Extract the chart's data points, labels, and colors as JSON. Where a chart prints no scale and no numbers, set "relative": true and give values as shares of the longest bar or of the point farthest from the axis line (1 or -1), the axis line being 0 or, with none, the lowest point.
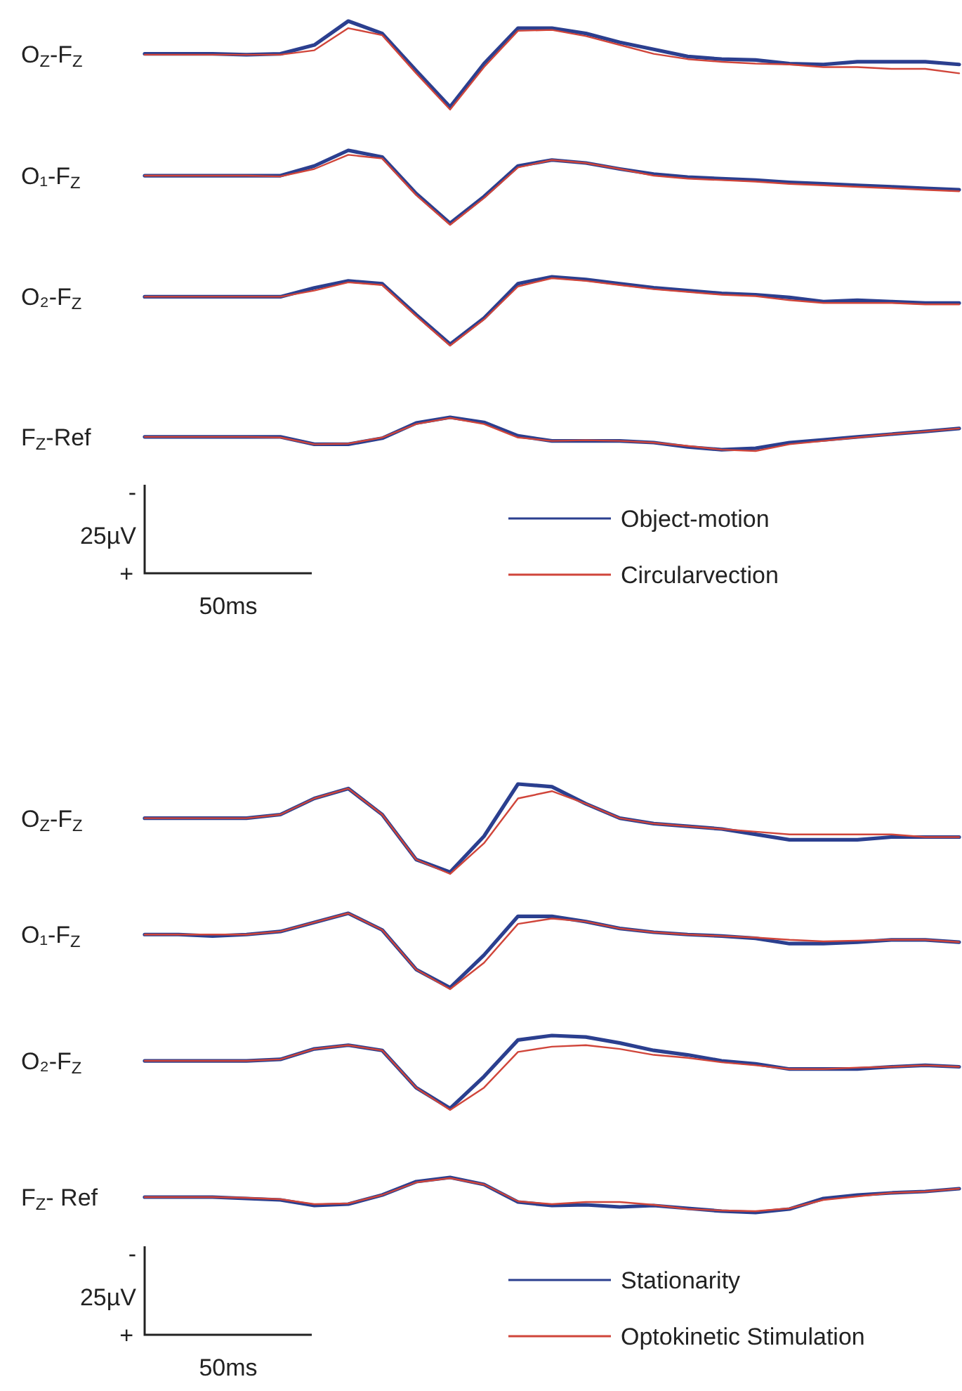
{
  "chart_data": [
    {
      "type": "line",
      "title": "O$_{Z}$-F$_{Z}$",
      "relative": true,
      "categories": [
        null,
        null,
        null,
        null,
        null,
        null,
        null,
        null,
        null,
        null,
        null,
        null,
        null,
        null,
        null,
        null,
        null,
        null,
        null,
        null,
        null,
        null,
        null,
        null,
        null
      ],
      "series": [
        {
          "color": "#2b3f8f",
          "values": [
            0.63,
            0.63,
            0.63,
            0.62,
            0.63,
            0.73,
            1,
            0.86,
            0.44,
            0.03,
            0.52,
            0.92,
            0.92,
            0.86,
            0.76,
            0.68,
            0.6,
            0.57,
            0.56,
            0.52,
            0.51,
            0.54,
            0.54,
            0.54,
            0.51
          ]
        },
        {
          "color": "#d0453a",
          "values": [
            0.62,
            0.62,
            0.62,
            0.62,
            0.62,
            0.67,
            0.92,
            0.84,
            0.41,
            0,
            0.48,
            0.89,
            0.9,
            0.83,
            0.73,
            0.63,
            0.57,
            0.54,
            0.52,
            0.51,
            0.48,
            0.48,
            0.46,
            0.46,
            0.41
          ]
        }
      ]
    },
    {
      "type": "line",
      "title": "O₁-F$_{Z}$",
      "relative": true,
      "categories": [
        null,
        null,
        null,
        null,
        null,
        null,
        null,
        null,
        null,
        null,
        null,
        null,
        null,
        null,
        null,
        null,
        null,
        null,
        null,
        null,
        null,
        null,
        null,
        null,
        null
      ],
      "series": [
        {
          "color": "#2b3f8f",
          "values": [
            0.66,
            0.66,
            0.66,
            0.66,
            0.66,
            0.79,
            1,
            0.91,
            0.42,
            0.02,
            0.38,
            0.79,
            0.87,
            0.83,
            0.75,
            0.68,
            0.64,
            0.62,
            0.6,
            0.57,
            0.55,
            0.53,
            0.51,
            0.49,
            0.47
          ]
        },
        {
          "color": "#d0453a",
          "values": [
            0.66,
            0.66,
            0.66,
            0.66,
            0.65,
            0.75,
            0.94,
            0.89,
            0.4,
            0,
            0.36,
            0.77,
            0.87,
            0.83,
            0.75,
            0.66,
            0.62,
            0.6,
            0.58,
            0.55,
            0.53,
            0.51,
            0.49,
            0.47,
            0.45
          ]
        }
      ]
    },
    {
      "type": "line",
      "title": "O₂-F$_{Z}$",
      "relative": true,
      "categories": [
        null,
        null,
        null,
        null,
        null,
        null,
        null,
        null,
        null,
        null,
        null,
        null,
        null,
        null,
        null,
        null,
        null,
        null,
        null,
        null,
        null,
        null,
        null,
        null,
        null
      ],
      "series": [
        {
          "color": "#2b3f8f",
          "values": [
            0.71,
            0.71,
            0.71,
            0.71,
            0.71,
            0.84,
            0.94,
            0.9,
            0.45,
            0.02,
            0.4,
            0.9,
            1,
            0.96,
            0.9,
            0.84,
            0.8,
            0.76,
            0.74,
            0.7,
            0.64,
            0.66,
            0.64,
            0.62,
            0.62
          ]
        },
        {
          "color": "#d0453a",
          "values": [
            0.71,
            0.71,
            0.71,
            0.71,
            0.71,
            0.8,
            0.92,
            0.88,
            0.43,
            0,
            0.38,
            0.86,
            0.98,
            0.94,
            0.88,
            0.82,
            0.78,
            0.74,
            0.72,
            0.66,
            0.62,
            0.62,
            0.62,
            0.6,
            0.6
          ]
        }
      ]
    },
    {
      "type": "line",
      "title": "F$_{Z}$-Ref",
      "relative": true,
      "legend": "bottom right",
      "annotations": [
        "-",
        "25µV",
        "+",
        "50ms"
      ],
      "categories": [
        null,
        null,
        null,
        null,
        null,
        null,
        null,
        null,
        null,
        null,
        null,
        null,
        null,
        null,
        null,
        null,
        null,
        null,
        null,
        null,
        null,
        null,
        null,
        null,
        null
      ],
      "series": [
        {
          "name": "Object-motion",
          "color": "#2b3f8f",
          "values": [
            0.42,
            0.42,
            0.42,
            0.42,
            0.42,
            0.2,
            0.2,
            0.38,
            0.83,
            1,
            0.85,
            0.45,
            0.3,
            0.3,
            0.3,
            0.25,
            0.12,
            0.04,
            0.08,
            0.25,
            0.33,
            0.42,
            0.5,
            0.58,
            0.67
          ]
        },
        {
          "name": "Circularvection",
          "color": "#d0453a",
          "values": [
            0.42,
            0.42,
            0.42,
            0.42,
            0.4,
            0.2,
            0.22,
            0.4,
            0.8,
            0.98,
            0.8,
            0.4,
            0.3,
            0.32,
            0.3,
            0.25,
            0.15,
            0.04,
            0,
            0.2,
            0.3,
            0.4,
            0.5,
            0.58,
            0.67
          ]
        }
      ]
    },
    {
      "type": "line",
      "title": "O$_{Z}$-F$_{Z}$",
      "relative": true,
      "categories": [
        null,
        null,
        null,
        null,
        null,
        null,
        null,
        null,
        null,
        null,
        null,
        null,
        null,
        null,
        null,
        null,
        null,
        null,
        null,
        null,
        null,
        null,
        null,
        null,
        null
      ],
      "series": [
        {
          "color": "#2b3f8f",
          "values": [
            0.62,
            0.62,
            0.62,
            0.62,
            0.66,
            0.84,
            0.95,
            0.66,
            0.16,
            0.02,
            0.42,
            1,
            0.97,
            0.78,
            0.62,
            0.56,
            0.53,
            0.5,
            0.44,
            0.38,
            0.38,
            0.38,
            0.41,
            0.41,
            0.41
          ]
        },
        {
          "color": "#d0453a",
          "values": [
            0.62,
            0.62,
            0.62,
            0.62,
            0.66,
            0.84,
            0.95,
            0.66,
            0.16,
            0,
            0.34,
            0.84,
            0.92,
            0.78,
            0.62,
            0.56,
            0.53,
            0.5,
            0.47,
            0.44,
            0.44,
            0.44,
            0.44,
            0.41,
            0.41
          ]
        }
      ]
    },
    {
      "type": "line",
      "title": "O₁-F$_{Z}$",
      "relative": true,
      "categories": [
        null,
        null,
        null,
        null,
        null,
        null,
        null,
        null,
        null,
        null,
        null,
        null,
        null,
        null,
        null,
        null,
        null,
        null,
        null,
        null,
        null,
        null,
        null,
        null,
        null
      ],
      "series": [
        {
          "color": "#2b3f8f",
          "values": [
            0.72,
            0.72,
            0.7,
            0.72,
            0.76,
            0.88,
            1,
            0.78,
            0.26,
            0.02,
            0.45,
            0.96,
            0.96,
            0.89,
            0.8,
            0.75,
            0.72,
            0.7,
            0.67,
            0.6,
            0.6,
            0.62,
            0.65,
            0.65,
            0.62
          ]
        },
        {
          "color": "#d0453a",
          "values": [
            0.72,
            0.72,
            0.72,
            0.72,
            0.76,
            0.88,
            1,
            0.78,
            0.26,
            0,
            0.35,
            0.86,
            0.93,
            0.89,
            0.8,
            0.75,
            0.72,
            0.7,
            0.68,
            0.65,
            0.63,
            0.64,
            0.65,
            0.65,
            0.62
          ]
        }
      ]
    },
    {
      "type": "line",
      "title": "O₂-F$_{Z}$",
      "relative": true,
      "categories": [
        null,
        null,
        null,
        null,
        null,
        null,
        null,
        null,
        null,
        null,
        null,
        null,
        null,
        null,
        null,
        null,
        null,
        null,
        null,
        null,
        null,
        null,
        null,
        null,
        null
      ],
      "series": [
        {
          "color": "#2b3f8f",
          "values": [
            0.66,
            0.66,
            0.66,
            0.66,
            0.68,
            0.82,
            0.87,
            0.8,
            0.3,
            0.02,
            0.45,
            0.94,
            1,
            0.98,
            0.9,
            0.8,
            0.74,
            0.66,
            0.62,
            0.55,
            0.55,
            0.55,
            0.58,
            0.6,
            0.58
          ]
        },
        {
          "color": "#d0453a",
          "values": [
            0.66,
            0.66,
            0.66,
            0.66,
            0.68,
            0.82,
            0.87,
            0.8,
            0.3,
            0,
            0.3,
            0.78,
            0.85,
            0.87,
            0.82,
            0.74,
            0.7,
            0.64,
            0.6,
            0.55,
            0.55,
            0.57,
            0.58,
            0.6,
            0.58
          ]
        }
      ]
    },
    {
      "type": "line",
      "title": "F$_{Z}$- Ref",
      "relative": true,
      "legend": "bottom right",
      "annotations": [
        "-",
        "25µV",
        "+",
        "50ms"
      ],
      "categories": [
        null,
        null,
        null,
        null,
        null,
        null,
        null,
        null,
        null,
        null,
        null,
        null,
        null,
        null,
        null,
        null,
        null,
        null,
        null,
        null,
        null,
        null,
        null,
        null,
        null
      ],
      "series": [
        {
          "name": "Stationarity",
          "color": "#2b3f8f",
          "values": [
            0.44,
            0.44,
            0.44,
            0.4,
            0.36,
            0.2,
            0.24,
            0.5,
            0.88,
            1,
            0.8,
            0.3,
            0.2,
            0.22,
            0.16,
            0.2,
            0.12,
            0.04,
            0,
            0.1,
            0.4,
            0.5,
            0.56,
            0.6,
            0.68
          ]
        },
        {
          "name": "Optokinetic Stimulation",
          "color": "#d0453a",
          "values": [
            0.44,
            0.44,
            0.44,
            0.42,
            0.38,
            0.24,
            0.26,
            0.5,
            0.86,
            0.98,
            0.8,
            0.32,
            0.24,
            0.3,
            0.3,
            0.22,
            0.1,
            0.06,
            0.04,
            0.12,
            0.36,
            0.46,
            0.56,
            0.6,
            0.68
          ]
        }
      ]
    }
  ]
}
